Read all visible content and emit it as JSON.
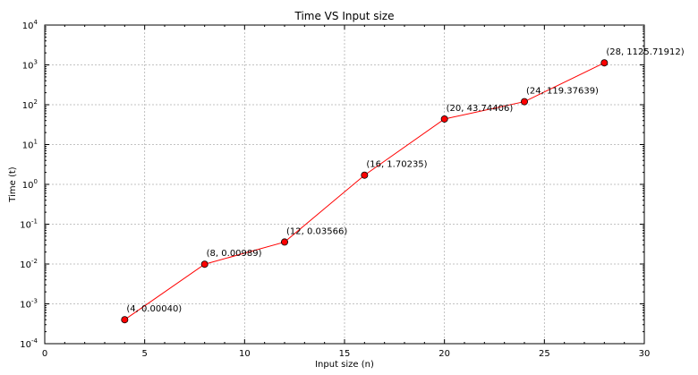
{
  "chart_data": {
    "type": "line",
    "title": "Time VS Input size",
    "xlabel": "Input size (n)",
    "ylabel": "Time (t)",
    "x_scale": "linear",
    "y_scale": "log",
    "xlim": [
      0,
      30
    ],
    "ylim": [
      0.0001,
      10000
    ],
    "xticks": [
      0,
      5,
      10,
      15,
      20,
      25,
      30
    ],
    "yticks": [
      {
        "base": "10",
        "exp": "-4",
        "value": 0.0001
      },
      {
        "base": "10",
        "exp": "-3",
        "value": 0.001
      },
      {
        "base": "10",
        "exp": "-2",
        "value": 0.01
      },
      {
        "base": "10",
        "exp": "-1",
        "value": 0.1
      },
      {
        "base": "10",
        "exp": "0",
        "value": 1
      },
      {
        "base": "10",
        "exp": "1",
        "value": 10
      },
      {
        "base": "10",
        "exp": "2",
        "value": 100
      },
      {
        "base": "10",
        "exp": "3",
        "value": 1000
      },
      {
        "base": "10",
        "exp": "4",
        "value": 10000
      }
    ],
    "grid": true,
    "colors": {
      "line": "#ff0000",
      "marker_fill": "#ff0000",
      "marker_edge": "#000000"
    },
    "series": [
      {
        "x": [
          4,
          8,
          12,
          16,
          20,
          24,
          28
        ],
        "y": [
          0.0004,
          0.00989,
          0.03566,
          1.70235,
          43.74406,
          119.37639,
          1125.71912
        ],
        "labels": [
          "(4, 0.00040)",
          "(8, 0.00989)",
          "(12, 0.03566)",
          "(16, 1.70235)",
          "(20, 43.74406)",
          "(24, 119.37639)",
          "(28, 1125.71912)"
        ]
      }
    ]
  }
}
